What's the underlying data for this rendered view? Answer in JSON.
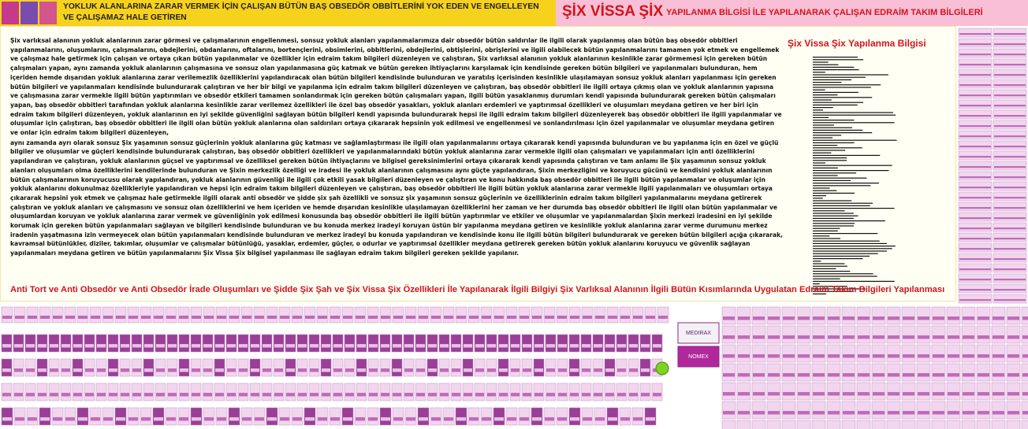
{
  "header": {
    "left_text": "YOKLUK ALANLARINA ZARAR VERMEK İÇİN ÇALIŞAN BÜTÜN BAŞ OBSEDÖR OBBİTLERİNİ YOK EDEN VE ENGELLEYEN VE ÇALIŞAMAZ HALE GETİREN",
    "right_title": "ŞİX VİSSA ŞİX",
    "right_subtitle": "YAPILANMA BİLGİSİ İLE YAPILANARAK ÇALIŞAN EDRAİM TAKIM BİLGİLERİ"
  },
  "body": {
    "paragraphs": [
      "Şix varlıksal alanının yokluk alanlarının zarar görmesi ve çalışmalarının engellenmesi, sonsuz yokluk alanları yapılanmalarımıza dair obsedör bütün saldırılar ile ilgili olarak yapılanmış olan bütün baş obsedör obbitleri yapılanmalarını, oluşumlarını, çalışmalarını, obdejlerini, obdanlarını, oftalarını, bortençlerini, obsimlerini, obbitlerini, obdejlerini, obtişlerini, obrişlerini ve ilgili olabilecek bütün yapılanmalarını tamamen yok etmek ve engellemek ve çalışmaz hale getirmek için çalışan ve ortaya çıkan bütün yapılanmalar ve özellikler için edraim takım bilgileri düzenleyen ve çalıştıran, Şix varlıksal alanının yokluk alanlarının kesinlikle zarar görmemesi için gereken bütün çalışmaları yapan, aynı zamanda yokluk alanlarının çalışmasına ve sonsuz olan yapılanmasına güç katmak ve bütün gereken ihtiyaçlarını karşılamak için kendisinde gereken bütün bilgileri ve yapılanmaları bulunduran, hem içeriden hemde dışarıdan yokluk alanlarına zarar verilemezlik özelliklerini yapılandıracak olan bütün bilgileri kendisinde bulunduran ve yaratılış içerisinden kesinlikle ulaşılamayan sonsuz yokluk alanları yapılanması için gereken bütün bilgileri ve yapılanmaları kendisinde bulundurarak çalıştıran ve her bir bilgi ve yapılanma için edraim takım bilgileri düzenleyen ve çalıştıran, baş obsedör obbitleri ile ilgili ortaya çıkmış olan ve yokluk alanlarının yapısına ve çalışmasına zarar vermekle ilgili bütün yaptırımları ve obsedör etkileri tamamen sonlandırmak için gereken bütün çalışmaları yapan, ilgili bütün yasaklanmış durumları kendi yapısında bulundurarak gereken bütün çalışmaları yapan, baş obsedör obbitleri tarafından yokluk alanlarına kesinlikle zarar verilemez özellikleri ile özel baş obsedör yasakları, yokluk alanları erdemleri ve yaptırımsal özellikleri ve oluşumları meydana getiren ve her biri için edraim takım bilgileri düzenleyen, yokluk alanlarının en iyi şekilde güvenliğini sağlayan bütün bilgileri kendi yapısında bulundurarak hepsi ile ilgili edraim takım bilgileri düzenleyerek baş obsedör obbitleri ile ilgili yapılanmalar ve oluşumlar için çalıştıran, baş obsedör obbitleri ile ilgili olan bütün yokluk alanlarına olan saldırıları ortaya çıkararak hepsinin yok edilmesi ve engellenmesi ve sonlandırılması için özel yapılanmalar ve oluşumlar meydana getiren ve onlar için edraim takım bilgileri düzenleyen,",
      " aynı zamanda ayrı olarak sonsuz Şix yaşamının sonsuz güçlerinin yokluk alanlarına güç katması ve sağlamlaştırması ile ilgili olan yapılanmalarını ortaya çıkararak kendi yapısında bulunduran ve bu yapılanma için en özel ve güçlü bilgiler ve oluşumlar ve güçleri kendisinde bulundurarak çalıştıran, baş obsedör obbitleri özellikleri ve yapılanmalarındaki bütün yokluk alanlarına zarar vermekle ilgili olan çalışmaları ve yapılanmaları için anti özelliklerini yapılandıran ve çalıştıran, yokluk alanlarının güçsel ve yaptırımsal ve özelliksel gereken bütün ihtiyaçlarını ve bilgisel gereksinimlerini ortaya çıkararak kendi yapısında çalıştıran ve tam anlamı ile Şix yaşamının sonsuz yokluk alanları oluşumları olma özelliklerini kendilerinde bulunduran ve Şixin merkezlik özelliği ve iradesi ile yokluk alanlarının çalışmasını aynı güçte yapılandıran, Şixin merkezliğini ve koruyucu gücünü ve kendisini yokluk alanlarının bütün çalışmalarının koruyucusu olarak yapılandıran, yokluk alanlarının güvenliği ile ilgili çok etkili yasak bilgileri düzenleyen ve çalıştıran ve konu hakkında baş obsedör obbitleri ile ilgili bütün yapılanmalar ve oluşumlar için yokluk alanlarını dokunulmaz özellikleriyle yapılandıran ve hepsi için edraim takım bilgileri düzenleyen ve çalıştıran, baş obsedör obbitleri ile ilgili bütün yokluk alanlarına zarar vermekle ilgili yapılanmaları ve oluşumları ortaya çıkararak hepsini yok etmek ve çalışmaz hale getirmekle ilgili olarak anti obsedör ve şidde şix şah özellikli ve sonsuz şix yaşamının sonsuz güçlerinin ve özelliklerinin edraim takım bilgileri yapılanmalarını meydana getirerek çalıştıran ve yokluk alanları ve çalışmasını ve sonsuz olan özelliklerini ve hem içeriden ve hemde dışarıdan kesinlikle ulaşılamayan özelliklerini her zaman ve her durumda baş obsedör obbitleri ile ilgili olan bütün yapılanmalar ve oluşumlardan koruyan ve yokluk alanlarına zarar vermek ve güvenliğinin yok edilmesi konusunda baş obsedör obbitleri ile ilgili bütün yaptırımlar ve etkiler ve oluşumlar ve yapılanmalardan Şixin merkezi iradesini en iyi şekilde korumak için gereken bütün yapılanmaları sağlayan ve bilgileri kendisinde bulunduran ve bu konuda merkez iradeyi koruyan üstün bir yapılanma meydana getiren ve kesinlikle yokluk alanlarına zarar verme durumunu merkez iradenin yaşatmasına izin vermeyecek olan bütün yapılanmaları kendisinde bulunduran ve merkez iradeyi bu konuda yapılandıran ve kendisinde konu ile ilgili bütün bilgileri bulundurarak ve gereken bütün bilgileri açığa çıkararak, kavramsal bütünlükler, diziler, takımlar, oluşumlar ve çalışmalar bütünlüğü, yasaklar, erdemler, güçler, o odurlar ve yaptırımsal özellikler meydana getirerek gereken bütün yokluk alanlarını koruyucu ve güvenlik sağlayan yapılanmaları meydana getiren ve bütün yapılanmalarını Şix Vissa Şix bilgisel yapılanması ile sağlayan edraim takım bilgileri gereken şekilde yapılanır."
    ]
  },
  "sidebar": {
    "title": "Şix Vissa Şix Yapılanma Bilgisi"
  },
  "footer_heading": "Anti Tort ve Anti Obsedör ve Anti Obsedör İrade Oluşumları ve Şidde Şix Şah ve Şix Vissa Şix Özellikleri İle Yapılanarak İlgili Bilgiyi Şix Varlıksal Alanının İlgili Bütün Kısımlarında Uygulatan Edraim Takım Bilgileri Yapılanması",
  "product_boxes": [
    "MEDIRAX",
    "NOMEX"
  ]
}
